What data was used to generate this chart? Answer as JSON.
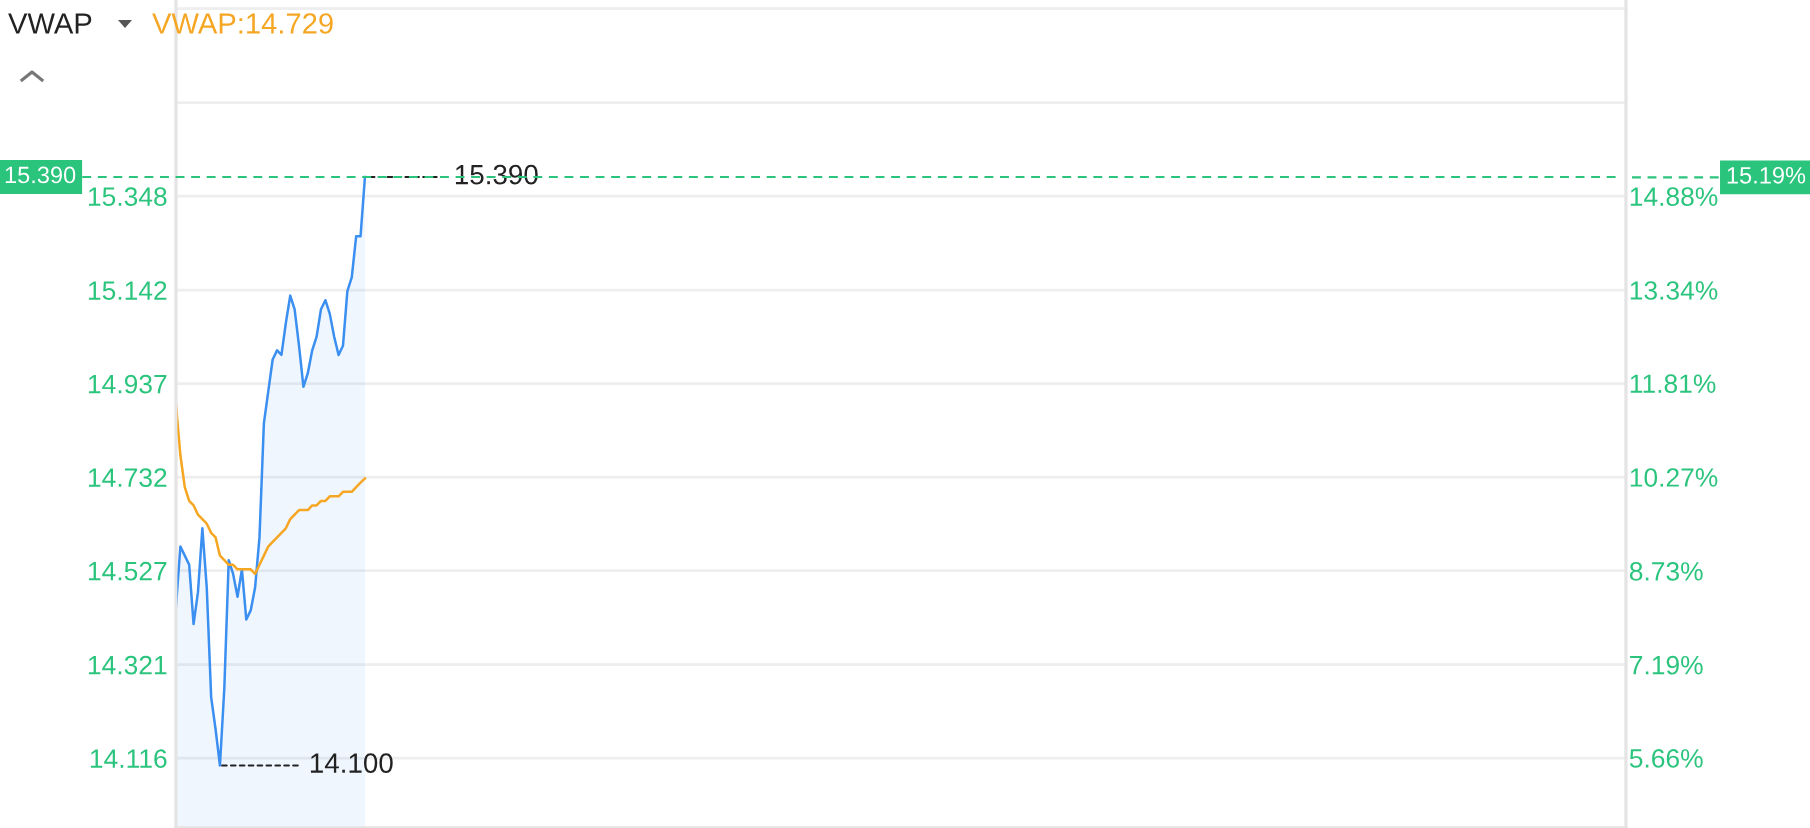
{
  "chart_data": {
    "type": "area",
    "title": "VWAP",
    "categories": [
      null,
      null,
      null,
      null,
      null,
      null,
      null,
      null,
      null,
      null,
      null,
      null,
      null,
      null,
      null,
      null,
      null,
      null,
      null,
      null,
      null,
      null,
      null,
      null,
      null,
      null,
      null,
      null,
      null,
      null,
      null,
      null,
      null,
      null,
      null,
      null,
      null,
      null,
      null,
      null,
      null,
      null,
      null,
      null,
      null,
      null,
      null,
      null,
      null,
      null,
      null,
      null,
      null,
      null,
      null,
      null,
      null,
      null,
      null,
      null,
      null,
      null,
      null,
      null,
      null,
      null,
      null,
      null,
      null,
      null,
      null,
      null,
      null,
      null,
      null,
      null,
      null,
      null,
      null,
      null,
      null,
      null,
      null,
      null,
      null,
      null,
      null,
      null,
      null,
      null,
      null,
      null,
      null,
      null,
      null,
      null,
      null,
      null,
      null,
      null,
      null,
      null,
      null,
      null,
      null,
      null,
      null,
      null,
      null,
      null,
      null,
      null,
      null,
      null,
      null,
      null,
      null,
      null,
      null,
      null,
      null,
      null,
      null,
      null,
      null,
      null,
      null,
      null,
      null,
      null,
      null,
      null,
      null,
      null,
      null,
      null,
      null,
      null,
      null,
      null,
      null,
      null,
      null,
      null,
      null,
      null,
      null,
      null,
      null,
      null,
      null,
      null,
      null,
      null,
      null,
      null,
      null,
      null,
      null,
      null,
      null,
      null,
      null,
      null,
      null,
      null,
      null,
      null,
      null,
      null,
      null,
      null,
      null,
      null,
      null,
      null,
      null,
      null,
      null,
      null,
      null,
      null,
      null,
      null,
      null,
      null,
      null,
      null,
      null,
      null,
      null,
      null,
      null,
      null,
      null,
      null,
      null,
      null,
      null,
      null,
      null,
      null,
      null,
      null,
      null,
      null,
      null,
      null,
      null,
      null,
      null,
      null,
      null,
      null,
      null,
      null,
      null,
      null,
      null,
      null,
      null,
      null,
      null,
      null,
      null,
      null,
      null,
      null,
      null,
      null,
      null,
      null,
      null,
      null,
      null,
      null,
      null,
      null,
      null,
      null,
      null,
      null,
      null,
      null,
      null,
      null,
      null,
      null,
      null,
      null,
      null,
      null,
      null,
      null,
      null,
      null,
      null,
      null,
      null,
      null,
      null,
      null,
      null,
      null,
      null,
      null,
      null,
      null,
      null,
      null,
      null,
      null,
      null,
      null,
      null,
      null,
      null,
      null,
      null,
      null,
      null,
      null,
      null,
      null,
      null,
      null,
      null,
      null,
      null,
      null,
      null,
      null,
      null,
      null,
      null,
      null,
      null,
      null,
      null,
      null,
      null,
      null,
      null,
      null,
      null,
      null,
      null,
      null,
      null,
      null,
      null,
      null,
      null,
      null,
      null,
      null,
      null,
      null,
      null,
      null,
      null,
      null,
      null,
      null,
      null,
      null,
      null,
      null,
      null,
      null,
      null
    ],
    "series": [
      {
        "color": "#3a8ff0",
        "values": [
          14.45,
          14.58,
          14.56,
          14.54,
          14.41,
          14.48,
          14.62,
          14.49,
          14.25,
          14.18,
          14.1,
          14.27,
          14.55,
          14.52,
          14.47,
          14.53,
          14.42,
          14.44,
          14.49,
          14.6,
          14.85,
          14.92,
          14.99,
          15.01,
          15,
          15.07,
          15.13,
          15.1,
          15.02,
          14.93,
          14.96,
          15.01,
          15.04,
          15.1,
          15.12,
          15.09,
          15.04,
          15,
          15.02,
          15.14,
          15.17,
          15.26,
          15.26,
          15.39,
          null,
          null,
          null,
          null,
          null,
          null,
          null,
          null,
          null,
          null,
          null,
          null,
          null,
          null,
          null,
          null,
          null,
          null,
          null,
          null,
          null,
          null,
          null,
          null,
          null,
          null,
          null,
          null,
          null,
          null,
          null,
          null,
          null,
          null,
          null,
          null,
          null,
          null,
          null,
          null,
          null,
          null,
          null,
          null,
          null,
          null,
          null,
          null,
          null,
          null,
          null,
          null,
          null,
          null,
          null,
          null,
          null,
          null,
          null,
          null,
          null,
          null,
          null,
          null,
          null,
          null,
          null,
          null,
          null,
          null,
          null,
          null,
          null,
          null,
          null,
          null,
          null,
          null,
          null,
          null,
          null,
          null,
          null,
          null,
          null,
          null,
          null,
          null,
          null,
          null,
          null,
          null,
          null,
          null,
          null,
          null,
          null,
          null,
          null,
          null,
          null,
          null,
          null,
          null,
          null,
          null,
          null,
          null,
          null,
          null,
          null,
          null,
          null,
          null,
          null,
          null,
          null,
          null,
          null,
          null,
          null,
          null,
          null,
          null,
          null,
          null,
          null,
          null,
          null,
          null,
          null,
          null,
          null,
          null,
          null,
          null,
          null,
          null,
          null,
          null,
          null,
          null,
          null,
          null,
          null,
          null,
          null,
          null,
          null,
          null,
          null,
          null,
          null,
          null,
          null,
          null,
          null,
          null,
          null,
          null,
          null,
          null,
          null,
          null,
          null,
          null,
          null,
          null,
          null,
          null,
          null,
          null,
          null,
          null,
          null,
          null,
          null,
          null,
          null,
          null,
          null,
          null,
          null,
          null,
          null,
          null,
          null,
          null,
          null,
          null,
          null,
          null,
          null,
          null,
          null,
          null,
          null,
          null,
          null,
          null,
          null,
          null,
          null,
          null,
          null,
          null,
          null,
          null,
          null,
          null,
          null,
          null,
          null,
          null,
          null,
          null,
          null,
          null,
          null,
          null,
          null,
          null,
          null,
          null,
          null,
          null,
          null,
          null,
          null,
          null,
          null,
          null,
          null,
          null,
          null,
          null,
          null,
          null,
          null,
          null,
          null,
          null,
          null,
          null,
          null,
          null,
          null,
          null,
          null,
          null,
          null,
          null,
          null,
          null,
          null,
          null,
          null,
          null,
          null,
          null,
          null,
          null,
          null,
          null,
          null,
          null,
          null,
          null,
          null,
          null,
          null,
          null,
          null,
          null,
          null,
          null,
          null,
          null,
          null,
          null,
          null,
          null,
          null,
          null,
          null,
          null,
          null
        ]
      },
      {
        "name": "VWAP:14.729",
        "type": "line",
        "color": "#f5a623",
        "values": [
          14.89,
          14.78,
          14.71,
          14.68,
          14.67,
          14.65,
          14.64,
          14.63,
          14.61,
          14.6,
          14.56,
          14.55,
          14.54,
          14.54,
          14.53,
          14.53,
          14.53,
          14.53,
          14.52,
          14.54,
          14.56,
          14.58,
          14.59,
          14.6,
          14.61,
          14.62,
          14.64,
          14.65,
          14.66,
          14.66,
          14.66,
          14.67,
          14.67,
          14.68,
          14.68,
          14.69,
          14.69,
          14.69,
          14.7,
          14.7,
          14.7,
          14.71,
          14.72,
          14.729,
          null,
          null,
          null,
          null,
          null,
          null,
          null,
          null,
          null,
          null,
          null,
          null,
          null,
          null,
          null,
          null,
          null,
          null,
          null,
          null,
          null,
          null,
          null,
          null,
          null,
          null,
          null,
          null,
          null,
          null,
          null,
          null,
          null,
          null,
          null,
          null,
          null,
          null,
          null,
          null,
          null,
          null,
          null,
          null,
          null,
          null,
          null,
          null,
          null,
          null,
          null,
          null,
          null,
          null,
          null,
          null,
          null,
          null,
          null,
          null,
          null,
          null,
          null,
          null,
          null,
          null,
          null,
          null,
          null,
          null,
          null,
          null,
          null,
          null,
          null,
          null,
          null,
          null,
          null,
          null,
          null,
          null,
          null,
          null,
          null,
          null,
          null,
          null,
          null,
          null,
          null,
          null,
          null,
          null,
          null,
          null,
          null,
          null,
          null,
          null,
          null,
          null,
          null,
          null,
          null,
          null,
          null,
          null,
          null,
          null,
          null,
          null,
          null,
          null,
          null,
          null,
          null,
          null,
          null,
          null,
          null,
          null,
          null,
          null,
          null,
          null,
          null,
          null,
          null,
          null,
          null,
          null,
          null,
          null,
          null,
          null,
          null,
          null,
          null,
          null,
          null,
          null,
          null,
          null,
          null,
          null,
          null,
          null,
          null,
          null,
          null,
          null,
          null,
          null,
          null,
          null,
          null,
          null,
          null,
          null,
          null,
          null,
          null,
          null,
          null,
          null,
          null,
          null,
          null,
          null,
          null,
          null,
          null,
          null,
          null,
          null,
          null,
          null,
          null,
          null,
          null,
          null,
          null,
          null,
          null,
          null,
          null,
          null,
          null,
          null,
          null,
          null,
          null,
          null,
          null,
          null,
          null,
          null,
          null,
          null,
          null,
          null,
          null,
          null,
          null,
          null,
          null,
          null,
          null,
          null,
          null,
          null,
          null,
          null,
          null,
          null,
          null,
          null,
          null,
          null,
          null,
          null,
          null,
          null,
          null,
          null,
          null,
          null,
          null,
          null,
          null,
          null,
          null,
          null,
          null,
          null,
          null,
          null,
          null,
          null,
          null,
          null,
          null,
          null,
          null,
          null,
          null,
          null,
          null,
          null,
          null,
          null,
          null,
          null,
          null,
          null,
          null,
          null,
          null,
          null,
          null,
          null,
          null,
          null,
          null,
          null,
          null,
          null,
          null,
          null,
          null,
          null,
          null,
          null,
          null,
          null,
          null,
          null,
          null,
          null,
          null,
          null,
          null,
          null,
          null,
          null,
          null
        ]
      }
    ],
    "ylim": [
      13.963,
      15.778
    ],
    "yticks": [
      14.116,
      14.321,
      14.527,
      14.732,
      14.937,
      15.142,
      15.348,
      {
        "value": 15.553,
        "label": null
      },
      {
        "value": 15.759,
        "label": null
      }
    ],
    "y2lim": [
      4.51,
      18.1
    ],
    "y2ticks": [
      {
        "value": 5.66,
        "label": "5.66%"
      },
      {
        "value": 7.19,
        "label": "7.19%"
      },
      {
        "value": 8.73,
        "label": "8.73%"
      },
      {
        "value": 10.27,
        "label": "10.27%"
      },
      {
        "value": 11.81,
        "label": "11.81%"
      },
      {
        "value": 13.34,
        "label": "13.34%"
      },
      {
        "value": 14.88,
        "label": "14.88%"
      }
    ],
    "ref_lines": [
      {
        "axis": "y",
        "value": 15.39,
        "label": "15.390",
        "color": "#2bc47d",
        "line_style": "dashed"
      },
      {
        "axis": "y2",
        "value": 15.19,
        "label": "15.19%",
        "color": "#2bc47d",
        "line_style": "dashed"
      }
    ],
    "annotations": [
      {
        "text": "15.390",
        "y": 15.39
      },
      "14.100"
    ],
    "tick_labels": "y",
    "grid": "y",
    "legend": "top left"
  }
}
